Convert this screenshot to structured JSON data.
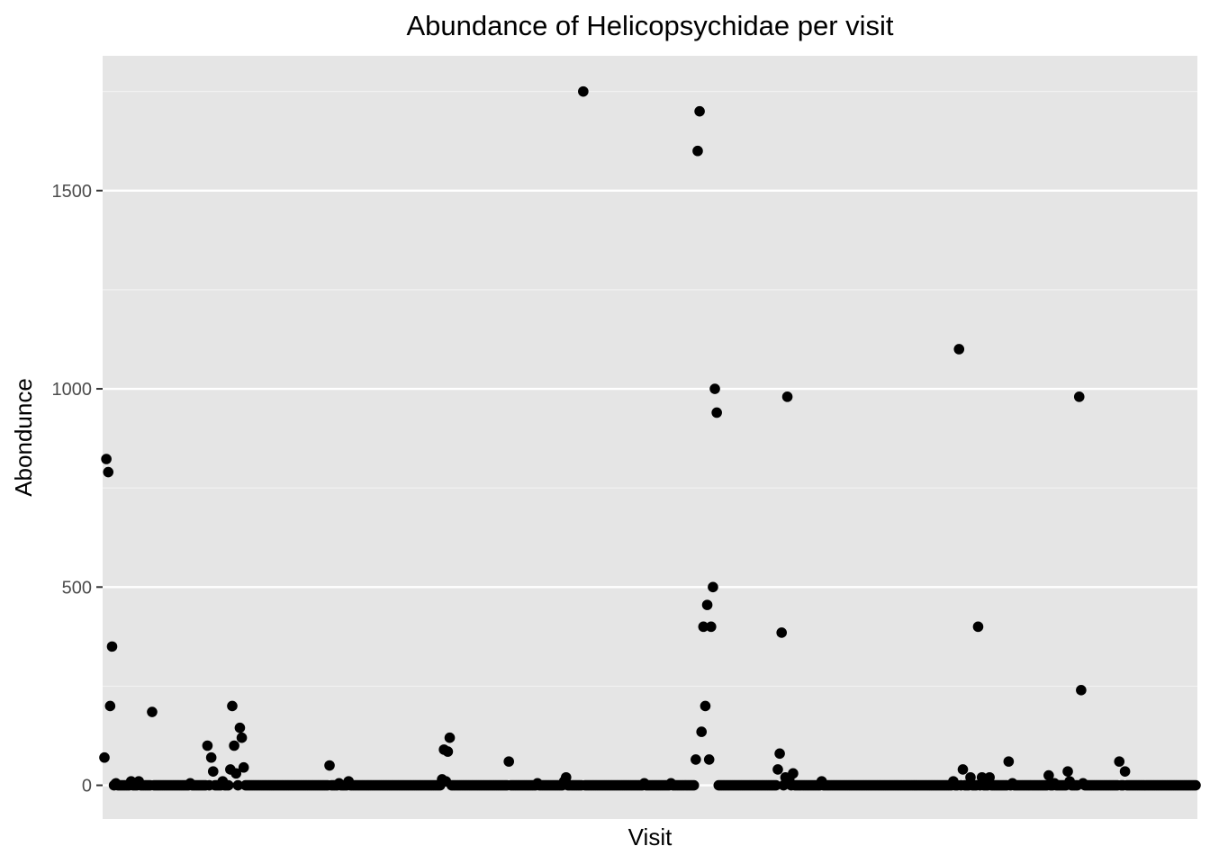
{
  "chart_data": {
    "type": "scatter",
    "title": "Abundance of Helicopsychidae per visit",
    "xlabel": "Visit",
    "ylabel": "Abondunce",
    "x_ticks_shown": false,
    "y_ticks": [
      0,
      500,
      1000,
      1500
    ],
    "y_tick_labels": [
      "0",
      "500",
      "1000",
      "1500"
    ],
    "ylim": [
      -85,
      1840
    ],
    "grid": true,
    "panel_background": "#e5e5e5",
    "point_color": "#000000",
    "series": [
      {
        "values": [
          70,
          823,
          790,
          200,
          350,
          0,
          5,
          0,
          0,
          0,
          0,
          0,
          0,
          0,
          10,
          0,
          0,
          0,
          10,
          0,
          0,
          0,
          0,
          0,
          0,
          185,
          0,
          0,
          0,
          0,
          0,
          0,
          0,
          0,
          0,
          0,
          0,
          0,
          0,
          0,
          0,
          0,
          0,
          0,
          0,
          5,
          0,
          0,
          0,
          0,
          0,
          0,
          0,
          0,
          100,
          0,
          70,
          35,
          0,
          0,
          0,
          0,
          10,
          0,
          0,
          0,
          40,
          200,
          100,
          30,
          0,
          145,
          120,
          45,
          0,
          0,
          0,
          0,
          0,
          0,
          0,
          0,
          0,
          0,
          0,
          0,
          0,
          0,
          0,
          0,
          0,
          0,
          0,
          0,
          0,
          0,
          0,
          0,
          0,
          0,
          0,
          0,
          0,
          0,
          0,
          0,
          0,
          0,
          0,
          0,
          0,
          0,
          0,
          0,
          0,
          0,
          0,
          0,
          50,
          0,
          0,
          0,
          0,
          5,
          0,
          0,
          0,
          0,
          10,
          0,
          0,
          0,
          0,
          0,
          0,
          0,
          0,
          0,
          0,
          0,
          0,
          0,
          0,
          0,
          0,
          0,
          0,
          0,
          0,
          0,
          0,
          0,
          0,
          0,
          0,
          0,
          0,
          0,
          0,
          0,
          0,
          0,
          0,
          0,
          0,
          0,
          0,
          0,
          0,
          0,
          0,
          0,
          0,
          0,
          0,
          0,
          0,
          15,
          90,
          10,
          85,
          120,
          0,
          0,
          0,
          0,
          0,
          0,
          0,
          0,
          0,
          0,
          0,
          0,
          0,
          0,
          0,
          0,
          0,
          0,
          0,
          0,
          0,
          0,
          0,
          0,
          0,
          0,
          0,
          0,
          0,
          0,
          60,
          0,
          0,
          0,
          0,
          0,
          0,
          0,
          0,
          0,
          0,
          0,
          0,
          0,
          0,
          5,
          0,
          0,
          0,
          0,
          0,
          0,
          0,
          0,
          0,
          0,
          0,
          0,
          0,
          10,
          20,
          0,
          0,
          0,
          0,
          0,
          0,
          0,
          0,
          1750,
          0,
          0,
          0,
          0,
          0,
          0,
          0,
          0,
          0,
          0,
          0,
          0,
          0,
          0,
          0,
          0,
          0,
          0,
          0,
          0,
          0,
          0,
          0,
          0,
          0,
          0,
          0,
          0,
          0,
          0,
          0,
          5,
          0,
          0,
          0,
          0,
          0,
          0,
          0,
          0,
          0,
          0,
          0,
          0,
          0,
          5,
          0,
          0,
          0,
          0,
          0,
          0,
          0,
          0,
          0,
          0,
          0,
          0,
          65,
          1600,
          1700,
          135,
          400,
          200,
          455,
          65,
          400,
          500,
          1000,
          940,
          0,
          0,
          0,
          0,
          0,
          0,
          0,
          0,
          0,
          0,
          0,
          0,
          0,
          0,
          0,
          0,
          0,
          0,
          0,
          0,
          0,
          0,
          0,
          0,
          0,
          0,
          0,
          0,
          0,
          0,
          0,
          40,
          80,
          385,
          0,
          20,
          980,
          15,
          0,
          30,
          0,
          0,
          0,
          0,
          0,
          0,
          0,
          0,
          0,
          0,
          0,
          0,
          0,
          0,
          10,
          0,
          0,
          0,
          0,
          0,
          0,
          0,
          0,
          0,
          0,
          0,
          0,
          0,
          0,
          0,
          0,
          0,
          0,
          0,
          0,
          0,
          0,
          0,
          0,
          0,
          0,
          0,
          0,
          0,
          0,
          0,
          0,
          0,
          0,
          0,
          0,
          0,
          0,
          0,
          0,
          0,
          0,
          0,
          0,
          0,
          0,
          0,
          0,
          0,
          0,
          0,
          0,
          0,
          0,
          0,
          0,
          0,
          0,
          0,
          0,
          0,
          0,
          0,
          0,
          0,
          0,
          0,
          0,
          10,
          0,
          0,
          1100,
          0,
          40,
          0,
          0,
          0,
          20,
          0,
          0,
          0,
          400,
          0,
          20,
          0,
          0,
          0,
          20,
          0,
          0,
          0,
          0,
          0,
          0,
          0,
          0,
          0,
          60,
          0,
          5,
          0,
          0,
          0,
          0,
          0,
          0,
          0,
          0,
          0,
          0,
          0,
          0,
          0,
          0,
          0,
          0,
          0,
          0,
          25,
          0,
          0,
          5,
          0,
          0,
          0,
          0,
          0,
          0,
          35,
          10,
          0,
          0,
          0,
          0,
          980,
          240,
          5,
          0,
          0,
          0,
          0,
          0,
          0,
          0,
          0,
          0,
          0,
          0,
          0,
          0,
          0,
          0,
          0,
          0,
          0,
          60,
          0,
          0,
          35,
          0,
          0,
          0,
          0,
          0,
          0,
          0,
          0,
          0,
          0,
          0,
          0,
          0,
          0,
          0,
          0,
          0,
          0,
          0,
          0,
          0,
          0,
          0,
          0,
          0,
          0,
          0,
          0,
          0,
          0,
          0,
          0,
          0,
          0,
          0,
          0,
          0
        ]
      }
    ]
  }
}
